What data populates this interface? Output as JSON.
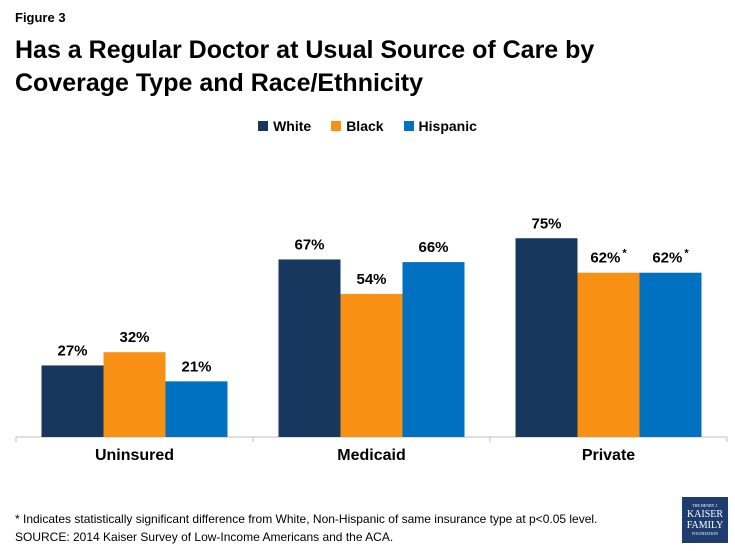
{
  "figure_label": "Figure 3",
  "chart_data": {
    "type": "bar",
    "title": "Has a Regular Doctor at Usual Source of Care by Coverage Type and Race/Ethnicity",
    "categories": [
      "Uninsured",
      "Medicaid",
      "Private"
    ],
    "series": [
      {
        "name": "White",
        "color": "#17375e",
        "values": [
          27,
          67,
          75
        ],
        "labels": [
          "27%",
          "67%",
          "75%"
        ],
        "marks": [
          "",
          "",
          ""
        ]
      },
      {
        "name": "Black",
        "color": "#f79013",
        "values": [
          32,
          54,
          62
        ],
        "labels": [
          "32%",
          "54%",
          "62%"
        ],
        "marks": [
          "",
          "",
          "*"
        ]
      },
      {
        "name": "Hispanic",
        "color": "#0070c0",
        "values": [
          21,
          66,
          62
        ],
        "labels": [
          "21%",
          "66%",
          "62%"
        ],
        "marks": [
          "",
          "",
          "*"
        ]
      }
    ],
    "xlabel": "",
    "ylabel": "",
    "ylim": [
      0,
      100
    ],
    "legend_position": "top-center"
  },
  "footnotes": {
    "significance": "* Indicates statistically significant difference from White, Non-Hispanic of same insurance type at p<0.05 level.",
    "source": "SOURCE: 2014 Kaiser Survey of Low-Income Americans and the ACA."
  },
  "logo": {
    "line1": "THE HENRY J.",
    "line2": "KAISER",
    "line3": "FAMILY",
    "line4": "FOUNDATION"
  }
}
